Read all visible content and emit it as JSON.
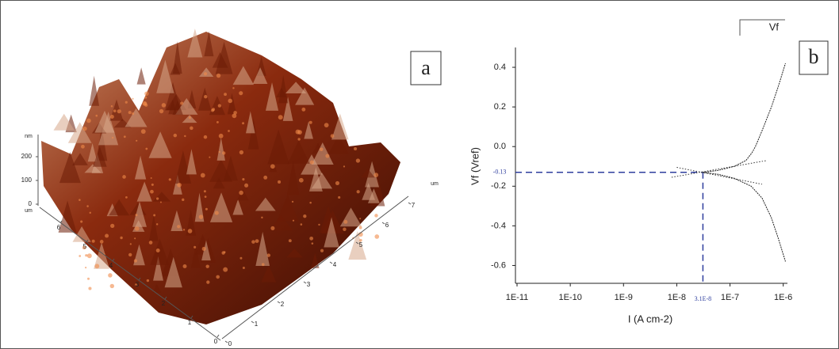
{
  "chart_data": [
    {
      "type": "surface3d",
      "panel_label": "a",
      "zlabel": "nm",
      "zticks": [
        0,
        100,
        200
      ],
      "ylabel": "um",
      "yticks": [
        0,
        1,
        2,
        3,
        4,
        5,
        6
      ],
      "xlabel": "um",
      "xticks": [
        0,
        1,
        2,
        3,
        4,
        5,
        6,
        7
      ],
      "color": "#8a2a0e"
    },
    {
      "type": "line",
      "panel_label": "b",
      "xlabel": "I (A cm-2)",
      "ylabel": "Vf (Vref)",
      "xscale": "log",
      "xlim": [
        1e-11,
        1.2e-06
      ],
      "xticks": [
        {
          "value": 1e-11,
          "label": "1E-11"
        },
        {
          "value": 1e-10,
          "label": "1E-10"
        },
        {
          "value": 1e-09,
          "label": "1E-9"
        },
        {
          "value": 1e-08,
          "label": "1E-8"
        },
        {
          "value": 1e-07,
          "label": "1E-7"
        },
        {
          "value": 1e-06,
          "label": "1E-6"
        }
      ],
      "ylim": [
        -0.69,
        0.5
      ],
      "yticks": [
        0.4,
        0.2,
        {
          "value": 0,
          "label": "0.0"
        },
        -0.2,
        -0.4,
        -0.6
      ],
      "legend": "top-right",
      "x": [
        3.1e-08,
        6e-08,
        1.2e-07,
        2e-07,
        2.6e-07,
        3e-07,
        4e-07,
        6e-07,
        8e-07,
        1.1e-06,
        null,
        3.1e-08,
        6e-08,
        1.2e-07,
        2.5e-07,
        4e-07,
        6e-07,
        8e-07,
        1.1e-06
      ],
      "series": [
        {
          "name": "Vf",
          "color": "#222222",
          "values": [
            -0.13,
            -0.12,
            -0.1,
            -0.07,
            -0.03,
            0.0,
            0.08,
            0.2,
            0.3,
            0.42,
            null,
            -0.13,
            -0.14,
            -0.16,
            -0.2,
            -0.26,
            -0.36,
            -0.46,
            -0.58
          ]
        }
      ],
      "tangents": [
        {
          "x": [
            8e-09,
            5e-07
          ],
          "values": [
            -0.155,
            -0.07
          ]
        },
        {
          "x": [
            1e-08,
            4e-07
          ],
          "values": [
            -0.105,
            -0.19
          ]
        }
      ],
      "corrosion_potential": {
        "value": -0.13,
        "label": "-0.13"
      },
      "corrosion_current": {
        "value": 3.1e-08,
        "label": "3.1E-8"
      },
      "marker_color": "#2e3e9e"
    }
  ]
}
